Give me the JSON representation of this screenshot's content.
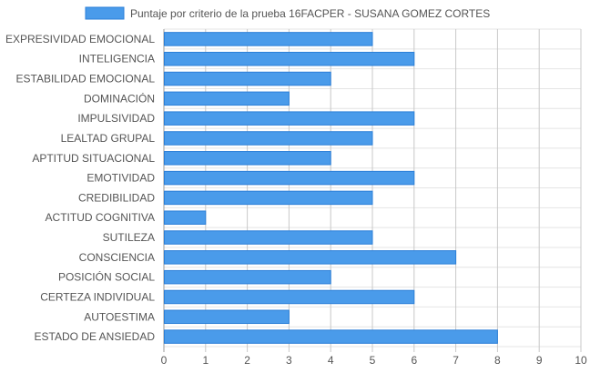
{
  "chart_data": {
    "type": "bar",
    "orientation": "horizontal",
    "categories": [
      "EXPRESIVIDAD EMOCIONAL",
      "INTELIGENCIA",
      "ESTABILIDAD EMOCIONAL",
      "DOMINACIÓN",
      "IMPULSIVIDAD",
      "LEALTAD GRUPAL",
      "APTITUD SITUACIONAL",
      "EMOTIVIDAD",
      "CREDIBILIDAD",
      "ACTITUD COGNITIVA",
      "SUTILEZA",
      "CONSCIENCIA",
      "POSICIÓN SOCIAL",
      "CERTEZA INDIVIDUAL",
      "AUTOESTIMA",
      "ESTADO DE ANSIEDAD"
    ],
    "series": [
      {
        "name": "Puntaje por criterio de la prueba 16FACPER - SUSANA GOMEZ CORTES",
        "values": [
          5,
          6,
          4,
          3,
          6,
          5,
          4,
          6,
          5,
          1,
          5,
          7,
          4,
          6,
          3,
          8
        ],
        "color": "#4a9bea",
        "border_color": "#2b7fd8"
      }
    ],
    "xlim": [
      0,
      10
    ],
    "x_ticks": [
      "0",
      "1",
      "2",
      "3",
      "4",
      "5",
      "6",
      "7",
      "8",
      "9",
      "10"
    ],
    "grid": true,
    "legend_position": "top"
  }
}
